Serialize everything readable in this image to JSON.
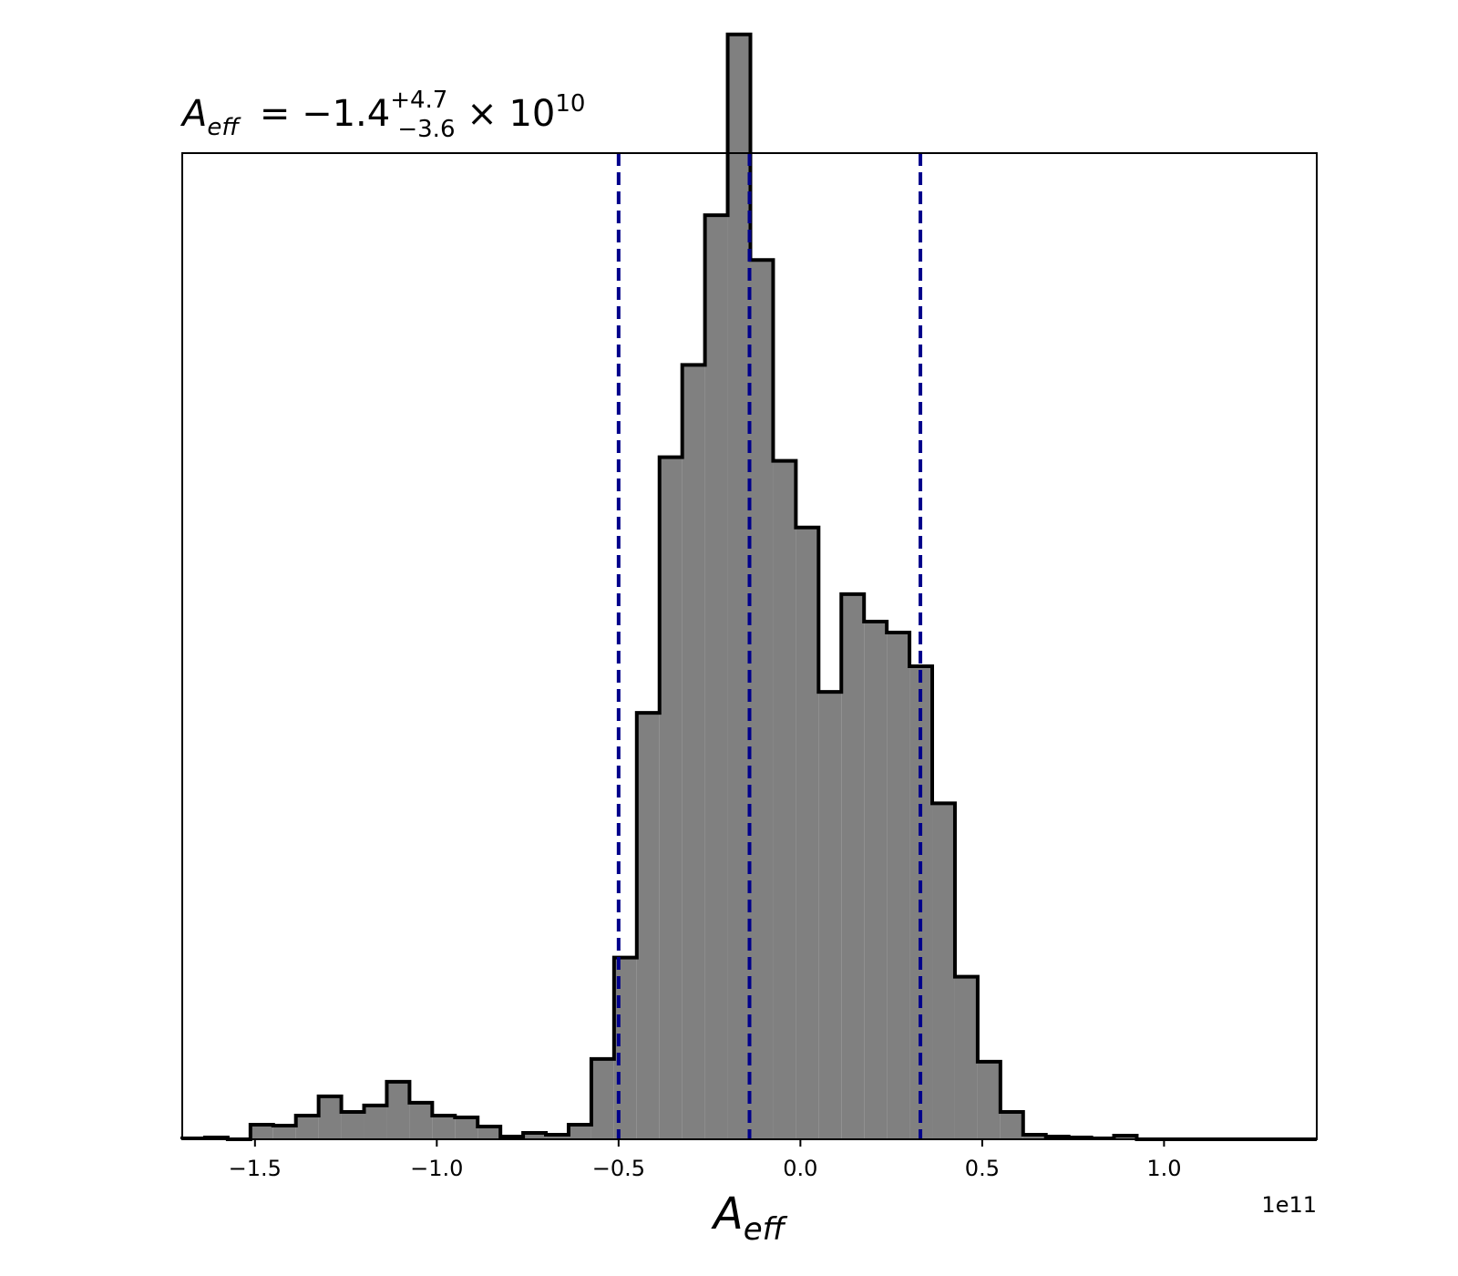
{
  "chart_data": {
    "type": "bar",
    "title": {
      "symbol": "A",
      "symbol_sub": "eff",
      "equals": " = −1.4",
      "sup": "+4.7",
      "sub": "−3.6",
      "times": " × 10",
      "exp": "10"
    },
    "xlabel": {
      "symbol": "A",
      "sub": "eff"
    },
    "x_offset_label": "1e11",
    "xlim": [
      -1.7,
      1.42
    ],
    "ylim": [
      0,
      1080
    ],
    "x_ticks": [
      -1.5,
      -1.0,
      -0.5,
      0.0,
      0.5,
      1.0
    ],
    "x_tick_labels": [
      "−1.5",
      "−1.0",
      "−0.5",
      "0.0",
      "0.5",
      "1.0"
    ],
    "y_ticks_shown": false,
    "histogram": {
      "bin_start": -1.7,
      "bin_width": 0.0625,
      "counts": [
        1,
        2,
        0,
        16,
        15,
        26,
        47,
        30,
        37,
        63,
        40,
        26,
        24,
        14,
        3,
        7,
        5,
        16,
        88,
        199,
        467,
        747,
        848,
        1012,
        1210,
        963,
        743,
        670,
        490,
        597,
        567,
        555,
        518,
        368,
        178,
        85,
        30,
        5,
        3,
        2,
        1,
        4,
        0,
        0,
        0,
        0,
        0,
        0,
        0,
        0
      ],
      "fill": "#808080",
      "edge": "#000000"
    },
    "quantile_lines": {
      "values": [
        -0.5,
        -0.14,
        0.33
      ],
      "color": "#00008b",
      "style": "dashed"
    }
  }
}
